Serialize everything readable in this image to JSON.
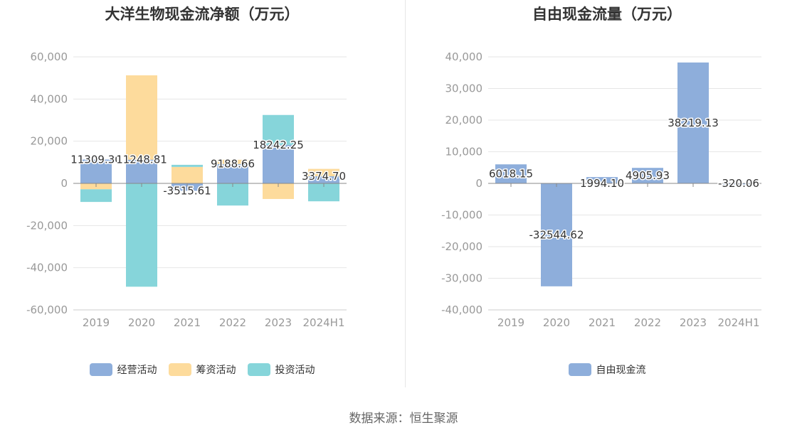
{
  "source_label": "数据来源：恒生聚源",
  "chart_data": [
    {
      "type": "bar",
      "stacked": true,
      "title": "大洋生物现金流净额（万元）",
      "categories": [
        "2019",
        "2020",
        "2021",
        "2022",
        "2023",
        "2024H1"
      ],
      "ylim": [
        -60000,
        60000
      ],
      "yticks": [
        60000,
        40000,
        20000,
        0,
        -20000,
        -40000,
        -60000
      ],
      "ytick_labels": [
        "60,000",
        "40,000",
        "20,000",
        "0",
        "-20,000",
        "-40,000",
        "-60,000"
      ],
      "grid": true,
      "legend_position": "bottom",
      "series": [
        {
          "name": "经营活动",
          "color": "#8eaedb",
          "values": [
            11309.3,
            11248.81,
            -3515.61,
            9188.66,
            18242.25,
            3374.7
          ]
        },
        {
          "name": "筹资活动",
          "color": "#fddb9c",
          "values": [
            -2800,
            40000,
            7800,
            2000,
            -7400,
            3500
          ]
        },
        {
          "name": "投资活动",
          "color": "#86d5da",
          "values": [
            -6000,
            -49000,
            1000,
            -10500,
            14200,
            -8500
          ]
        }
      ],
      "data_labels": [
        "11309.30",
        "11248.81",
        "-3515.61",
        "9188.66",
        "18242.25",
        "3374.70"
      ]
    },
    {
      "type": "bar",
      "title": "自由现金流量（万元）",
      "categories": [
        "2019",
        "2020",
        "2021",
        "2022",
        "2023",
        "2024H1"
      ],
      "ylim": [
        -40000,
        40000
      ],
      "yticks": [
        40000,
        30000,
        20000,
        10000,
        0,
        -10000,
        -20000,
        -30000,
        -40000
      ],
      "ytick_labels": [
        "40,000",
        "30,000",
        "20,000",
        "10,000",
        "0",
        "-10,000",
        "-20,000",
        "-30,000",
        "-40,000"
      ],
      "grid": true,
      "legend_position": "bottom",
      "series": [
        {
          "name": "自由现金流",
          "color": "#8eaedb",
          "values": [
            6018.15,
            -32544.62,
            1994.1,
            4905.93,
            38219.13,
            -320.06
          ]
        }
      ],
      "data_labels": [
        "6018.15",
        "-32544.62",
        "1994.10",
        "4905.93",
        "38219.13",
        "-320.06"
      ]
    }
  ]
}
